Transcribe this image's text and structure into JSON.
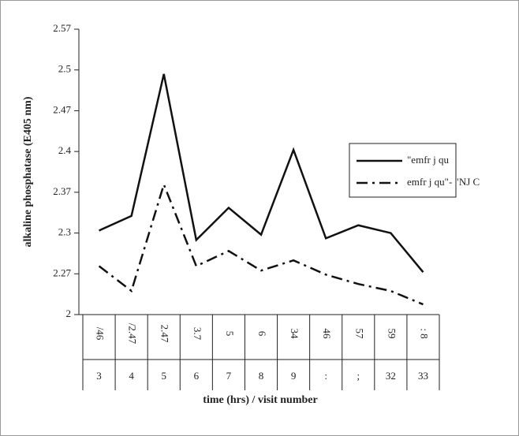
{
  "chart_data": {
    "type": "line",
    "y_label": "alkaline phosphatase (E405 nm)",
    "x_label": "time (hrs) / visit number",
    "categories": [
      "/46",
      "/2.47",
      "2.47",
      "3.7",
      "5",
      "6",
      "34",
      "46",
      "57",
      "59",
      ": 8"
    ],
    "visit_numbers": [
      "3",
      "4",
      "5",
      "6",
      "7",
      "8",
      "9",
      ":",
      ";",
      "32",
      "33"
    ],
    "ylim": [
      0,
      7
    ],
    "yticks": [
      {
        "value": 0,
        "label": "2"
      },
      {
        "value": 1,
        "label": "2.27"
      },
      {
        "value": 2,
        "label": "2.3"
      },
      {
        "value": 3,
        "label": "2.37"
      },
      {
        "value": 4,
        "label": "2.4"
      },
      {
        "value": 5,
        "label": "2.47"
      },
      {
        "value": 6,
        "label": "2.5"
      },
      {
        "value": 7,
        "label": "2.57"
      }
    ],
    "series": [
      {
        "name": "\"emfr j qu",
        "color": "#111111",
        "dash": "solid",
        "values": [
          2.06,
          2.42,
          5.9,
          1.83,
          2.62,
          1.96,
          4.04,
          1.87,
          2.19,
          2.0,
          1.04
        ]
      },
      {
        "name": "emfr j qu\"- \"NJ C",
        "color": "#111111",
        "dash": "dashdot",
        "values": [
          1.19,
          0.58,
          3.19,
          1.19,
          1.56,
          1.08,
          1.33,
          0.98,
          0.75,
          0.58,
          0.25
        ]
      }
    ]
  }
}
